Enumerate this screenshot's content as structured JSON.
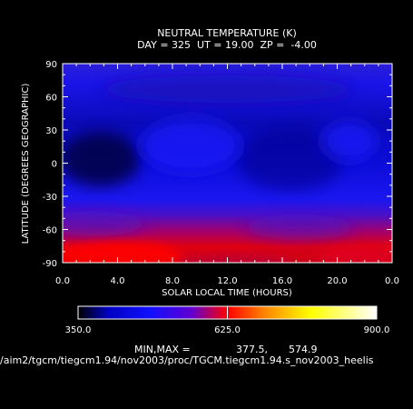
{
  "chart_data": {
    "type": "heatmap",
    "title": "NEUTRAL TEMPERATURE (K)",
    "subtitle": "DAY = 325  UT = 19.00  ZP =  -4.00",
    "xlabel": "SOLAR LOCAL TIME (HOURS)",
    "ylabel": "LATITUDE (DEGREES GEOGRAPHIC)",
    "xlim": [
      0,
      24
    ],
    "ylim": [
      -90,
      90
    ],
    "x_tick_labels": [
      "0.0",
      "4.0",
      "8.0",
      "12.0",
      "16.0",
      "20.0",
      "0.0"
    ],
    "y_tick_labels": [
      "90",
      "60",
      "30",
      "0",
      "-30",
      "-60",
      "-90"
    ],
    "colorbar": {
      "min": 350.0,
      "max": 900.0,
      "tick_labels": [
        "350.0",
        "625.0",
        "900.0"
      ],
      "colors": [
        "#000000",
        "#1010ff",
        "#6a00c8",
        "#ff0000",
        "#ff8000",
        "#ffff00",
        "#ffffff"
      ]
    },
    "min_max_label": "MIN,MAX =",
    "min_value": "377.5,",
    "max_value": "574.9",
    "field_extrema": {
      "min": 377.5,
      "max": 574.9
    }
  },
  "footer_path": "/aim2/tgcm/tiegcm1.94/nov2003/proc/TGCM.tiegcm1.94.s_nov2003_heelis"
}
